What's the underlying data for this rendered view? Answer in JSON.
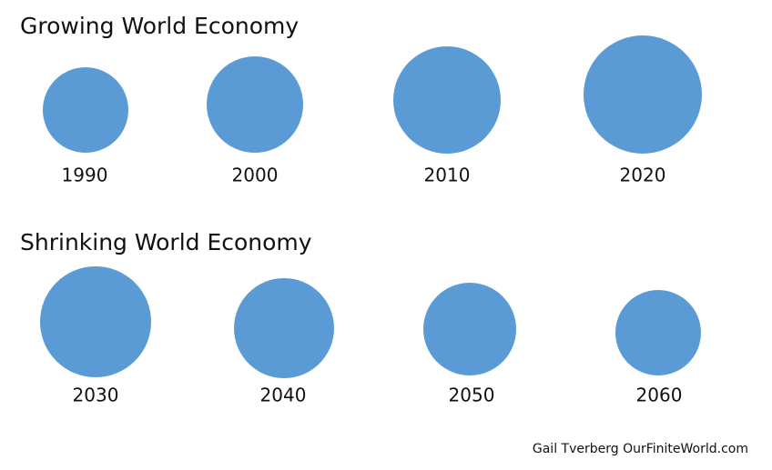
{
  "sections": [
    {
      "title": "Growing World Economy",
      "items": [
        "1990",
        "2000",
        "2010",
        "2020"
      ]
    },
    {
      "title": "Shrinking World Economy",
      "items": [
        "2030",
        "2040",
        "2050",
        "2060"
      ]
    }
  ],
  "footer": {
    "credit": "Gail Tverberg OurFiniteWorld.com"
  }
}
